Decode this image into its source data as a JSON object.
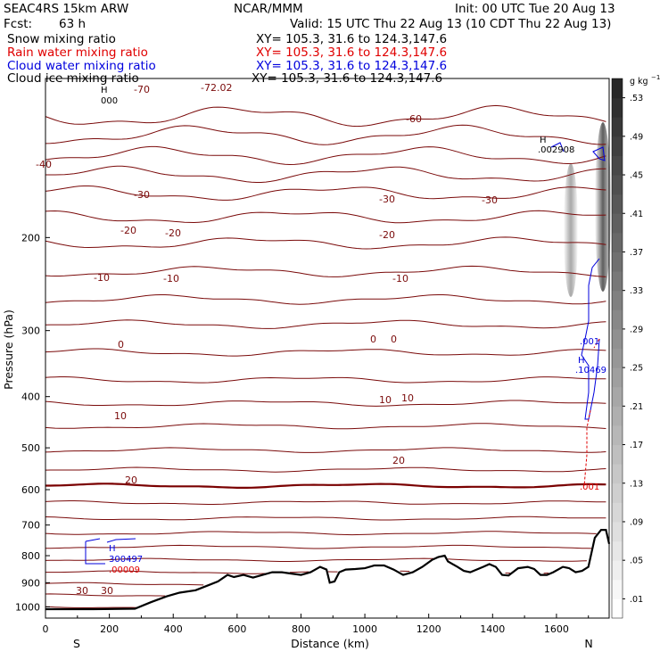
{
  "header": {
    "model": "SEAC4RS 15km ARW",
    "org": "NCAR/MMM",
    "init": "Init: 00 UTC Tue 20 Aug 13",
    "fcst_label": "Fcst:",
    "fcst_value": "63 h",
    "valid": "Valid: 15 UTC Thu 22 Aug 13 (10 CDT Thu 22 Aug 13)"
  },
  "fields": [
    {
      "name": "Snow mixing ratio",
      "xy": "XY= 105.3, 31.6 to 124.3,147.6",
      "color": "#000000"
    },
    {
      "name": "Rain water mixing ratio",
      "xy": "XY= 105.3, 31.6 to 124.3,147.6",
      "color": "#e00000"
    },
    {
      "name": "Cloud water mixing ratio",
      "xy": "XY= 105.3, 31.6 to 124.3,147.6",
      "color": "#0000dd"
    },
    {
      "name": "Cloud ice mixing ratio",
      "xy": "XY= 105.3, 31.6 to 124.3,147.6",
      "color": "#000000"
    }
  ],
  "chart_data": {
    "type": "cross-section contour",
    "xlabel": "Distance (km)",
    "ylabel": "Pressure (hPa)",
    "xlim": [
      0,
      1765
    ],
    "ylim": [
      1050,
      100
    ],
    "y_scale": "log",
    "x_ticks": [
      0,
      200,
      400,
      600,
      800,
      1000,
      1200,
      1400,
      1600
    ],
    "y_ticks": [
      200,
      300,
      400,
      500,
      600,
      700,
      800,
      900,
      1000
    ],
    "left_end_label": "S",
    "right_end_label": "N",
    "colorbar": {
      "unit": "g kg",
      "unit_exponent": "−1",
      "ticks": [
        ".01",
        ".05",
        ".09",
        ".13",
        ".17",
        ".21",
        ".25",
        ".29",
        ".33",
        ".37",
        ".41",
        ".45",
        ".49",
        ".53"
      ]
    },
    "temperature_contour_labels": [
      "-72.02",
      "-70",
      "-60",
      "-40",
      "-30",
      "-30",
      "-30",
      "-20",
      "-20",
      "-20",
      "-10",
      "-10",
      "-10",
      "0",
      "0",
      "0",
      "10",
      "10",
      "10",
      "20",
      "20",
      "30",
      "30"
    ],
    "temperature_contours_C": [
      -70,
      -60,
      -50,
      -40,
      -30,
      -20,
      -10,
      0,
      10,
      20,
      30
    ],
    "field_annotations": [
      {
        "marker": "H",
        "value": "000"
      },
      {
        "marker": "H",
        "value": ".002908"
      },
      {
        "marker": "H",
        "value": ".10469"
      },
      {
        "value": ".001"
      },
      {
        "value": ".001"
      },
      {
        "marker": "H",
        "value": "300497"
      },
      {
        "value": ".00009"
      }
    ],
    "terrain_surface": [
      [
        0,
        1010
      ],
      [
        50,
        1010
      ],
      [
        150,
        1010
      ],
      [
        280,
        1008
      ],
      [
        330,
        980
      ],
      [
        380,
        955
      ],
      [
        420,
        940
      ],
      [
        470,
        930
      ],
      [
        510,
        910
      ],
      [
        540,
        895
      ],
      [
        570,
        870
      ],
      [
        590,
        878
      ],
      [
        620,
        870
      ],
      [
        650,
        880
      ],
      [
        680,
        870
      ],
      [
        710,
        860
      ],
      [
        740,
        860
      ],
      [
        770,
        865
      ],
      [
        800,
        870
      ],
      [
        830,
        860
      ],
      [
        860,
        840
      ],
      [
        880,
        850
      ],
      [
        890,
        900
      ],
      [
        905,
        895
      ],
      [
        920,
        860
      ],
      [
        940,
        850
      ],
      [
        970,
        848
      ],
      [
        1000,
        845
      ],
      [
        1030,
        835
      ],
      [
        1060,
        835
      ],
      [
        1090,
        850
      ],
      [
        1120,
        870
      ],
      [
        1150,
        860
      ],
      [
        1180,
        840
      ],
      [
        1210,
        815
      ],
      [
        1230,
        805
      ],
      [
        1250,
        800
      ],
      [
        1260,
        820
      ],
      [
        1290,
        840
      ],
      [
        1310,
        855
      ],
      [
        1330,
        860
      ],
      [
        1350,
        850
      ],
      [
        1370,
        840
      ],
      [
        1390,
        830
      ],
      [
        1410,
        840
      ],
      [
        1430,
        870
      ],
      [
        1450,
        872
      ],
      [
        1480,
        845
      ],
      [
        1510,
        840
      ],
      [
        1530,
        848
      ],
      [
        1550,
        870
      ],
      [
        1570,
        870
      ],
      [
        1590,
        860
      ],
      [
        1620,
        840
      ],
      [
        1640,
        845
      ],
      [
        1660,
        860
      ],
      [
        1680,
        855
      ],
      [
        1700,
        840
      ],
      [
        1720,
        740
      ],
      [
        1740,
        715
      ],
      [
        1755,
        715
      ],
      [
        1765,
        760
      ]
    ]
  }
}
